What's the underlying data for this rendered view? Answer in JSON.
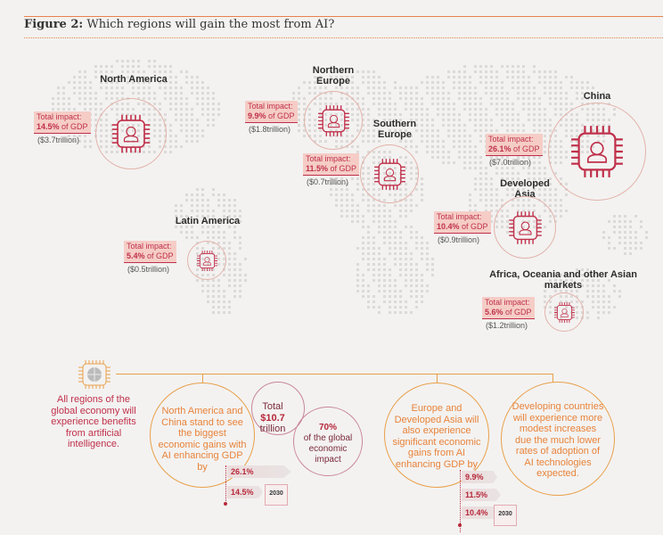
{
  "header": {
    "figure_label": "Figure 2:",
    "title": "Which regions will gain the most from AI?"
  },
  "regions": [
    {
      "name": "North America",
      "impact_label": "Total impact:",
      "pct": "14.5%",
      "of": " of GDP",
      "value": "($3.7trillion)"
    },
    {
      "name": "Northern Europe",
      "impact_label": "Total impact:",
      "pct": "9.9%",
      "of": " of GDP",
      "value": "($1.8trillion)"
    },
    {
      "name": "Southern Europe",
      "impact_label": "Total impact:",
      "pct": "11.5%",
      "of": " of GDP",
      "value": "($0.7trillion)"
    },
    {
      "name": "China",
      "impact_label": "Total impact:",
      "pct": "26.1%",
      "of": " of GDP",
      "value": "($7.0trillion)"
    },
    {
      "name": "Developed Asia",
      "impact_label": "Total impact:",
      "pct": "10.4%",
      "of": " of GDP",
      "value": "($0.9trillion)"
    },
    {
      "name": "Latin America",
      "impact_label": "Total impact:",
      "pct": "5.4%",
      "of": " of GDP",
      "value": "($0.5trillion)"
    },
    {
      "name": "Africa, Oceania and other Asian markets",
      "impact_label": "Total impact:",
      "pct": "5.6%",
      "of": " of GDP",
      "value": "($1.2trillion)"
    }
  ],
  "bottom": {
    "intro": "All regions of the global economy will experience benefits from artificial intelligence.",
    "na_china": "North America and China stand to see the biggest economic gains with AI enhancing GDP by",
    "na_china_pcts": [
      "26.1%",
      "14.5%"
    ],
    "total_label": "Total",
    "total_value": "$10.7",
    "total_unit": "trillion",
    "share_pct": "70%",
    "share_text": "of the global economic impact",
    "europe_asia": "Europe and Developed Asia will also experience significant economic gains from AI enhancing GDP by",
    "europe_asia_pcts": [
      "9.9%",
      "11.5%",
      "10.4%"
    ],
    "developing": "Developing countries will experience more modest increases due the much lower rates of adoption of AI technologies expected.",
    "year": "2030"
  },
  "colors": {
    "accent": "#e8833a",
    "red": "#c0304a",
    "callout_bg": "#f5cdc6",
    "background": "#f3f2f1"
  }
}
